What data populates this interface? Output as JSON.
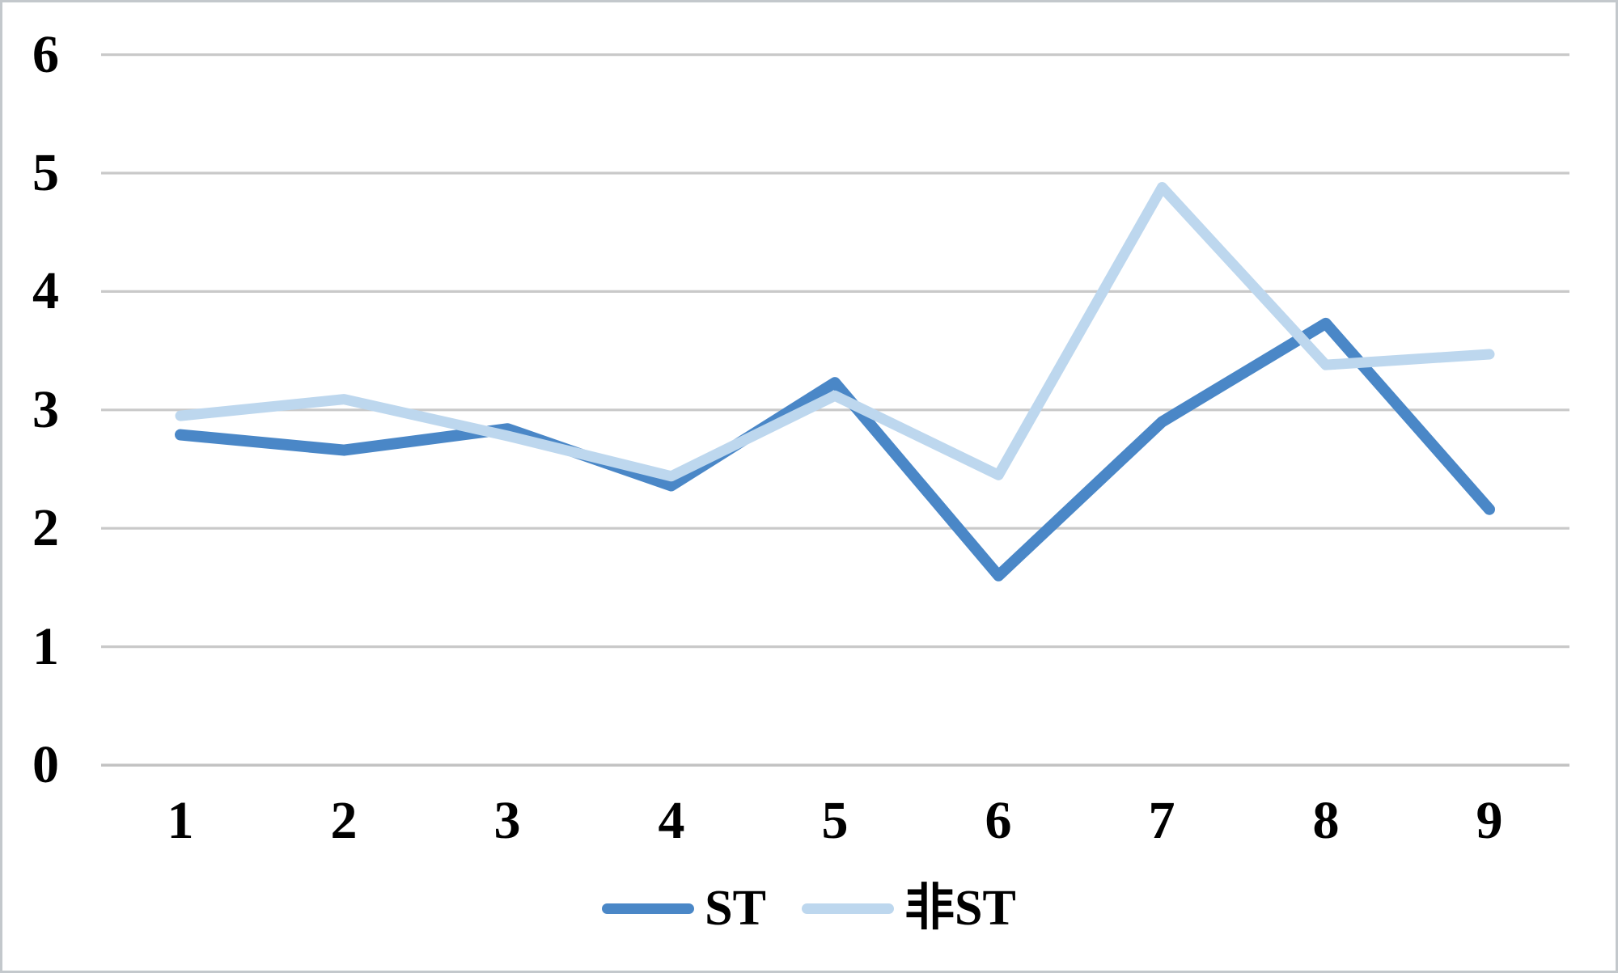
{
  "chart_data": {
    "type": "line",
    "title": "",
    "xlabel": "",
    "ylabel": "",
    "x": [
      1,
      2,
      3,
      4,
      5,
      6,
      7,
      8,
      9
    ],
    "x_ticks": [
      "1",
      "2",
      "3",
      "4",
      "5",
      "6",
      "7",
      "8",
      "9"
    ],
    "y_ticks": [
      0,
      1,
      2,
      3,
      4,
      5,
      6
    ],
    "ylim": [
      0,
      6
    ],
    "grid": "horizontal",
    "gridline_color": "#c9c9c9",
    "axis_line_color": "#c2c2c2",
    "legend_position": "bottom",
    "series": [
      {
        "name": "ST",
        "color": "#4a87c7",
        "values": [
          2.79,
          2.66,
          2.84,
          2.36,
          3.23,
          1.6,
          2.9,
          3.73,
          2.16
        ]
      },
      {
        "name": "非ST",
        "color": "#bdd7ee",
        "values": [
          2.95,
          3.09,
          2.78,
          2.44,
          3.12,
          2.45,
          4.88,
          3.38,
          3.47
        ]
      }
    ]
  }
}
